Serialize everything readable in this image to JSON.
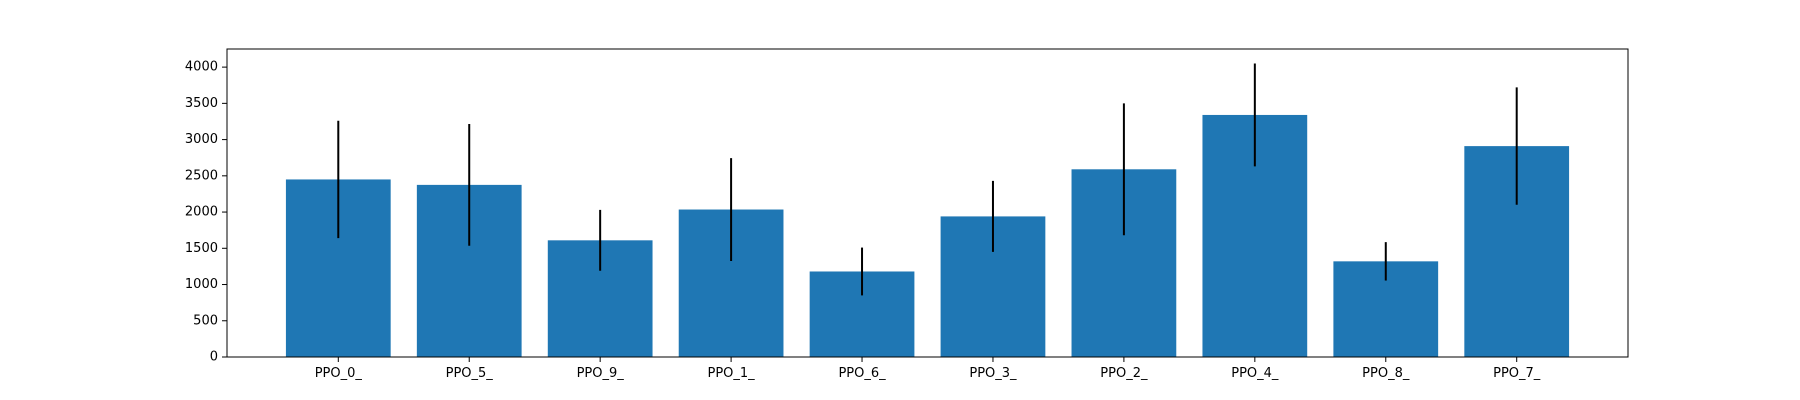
{
  "chart_data": {
    "type": "bar",
    "title": "",
    "xlabel": "",
    "ylabel": "",
    "categories": [
      "PPO_0_",
      "PPO_5_",
      "PPO_9_",
      "PPO_1_",
      "PPO_6_",
      "PPO_3_",
      "PPO_2_",
      "PPO_4_",
      "PPO_8_",
      "PPO_7_"
    ],
    "values": [
      2450,
      2375,
      1610,
      2035,
      1180,
      1940,
      2590,
      3340,
      1320,
      2910
    ],
    "errors": [
      810,
      840,
      420,
      710,
      330,
      490,
      910,
      710,
      265,
      810
    ],
    "ylim": [
      0,
      4250
    ],
    "yticks": [
      0,
      500,
      1000,
      1500,
      2000,
      2500,
      3000,
      3500,
      4000
    ],
    "bar_color": "#1f77b4",
    "error_color": "#000000",
    "grid": false,
    "legend": "none"
  }
}
